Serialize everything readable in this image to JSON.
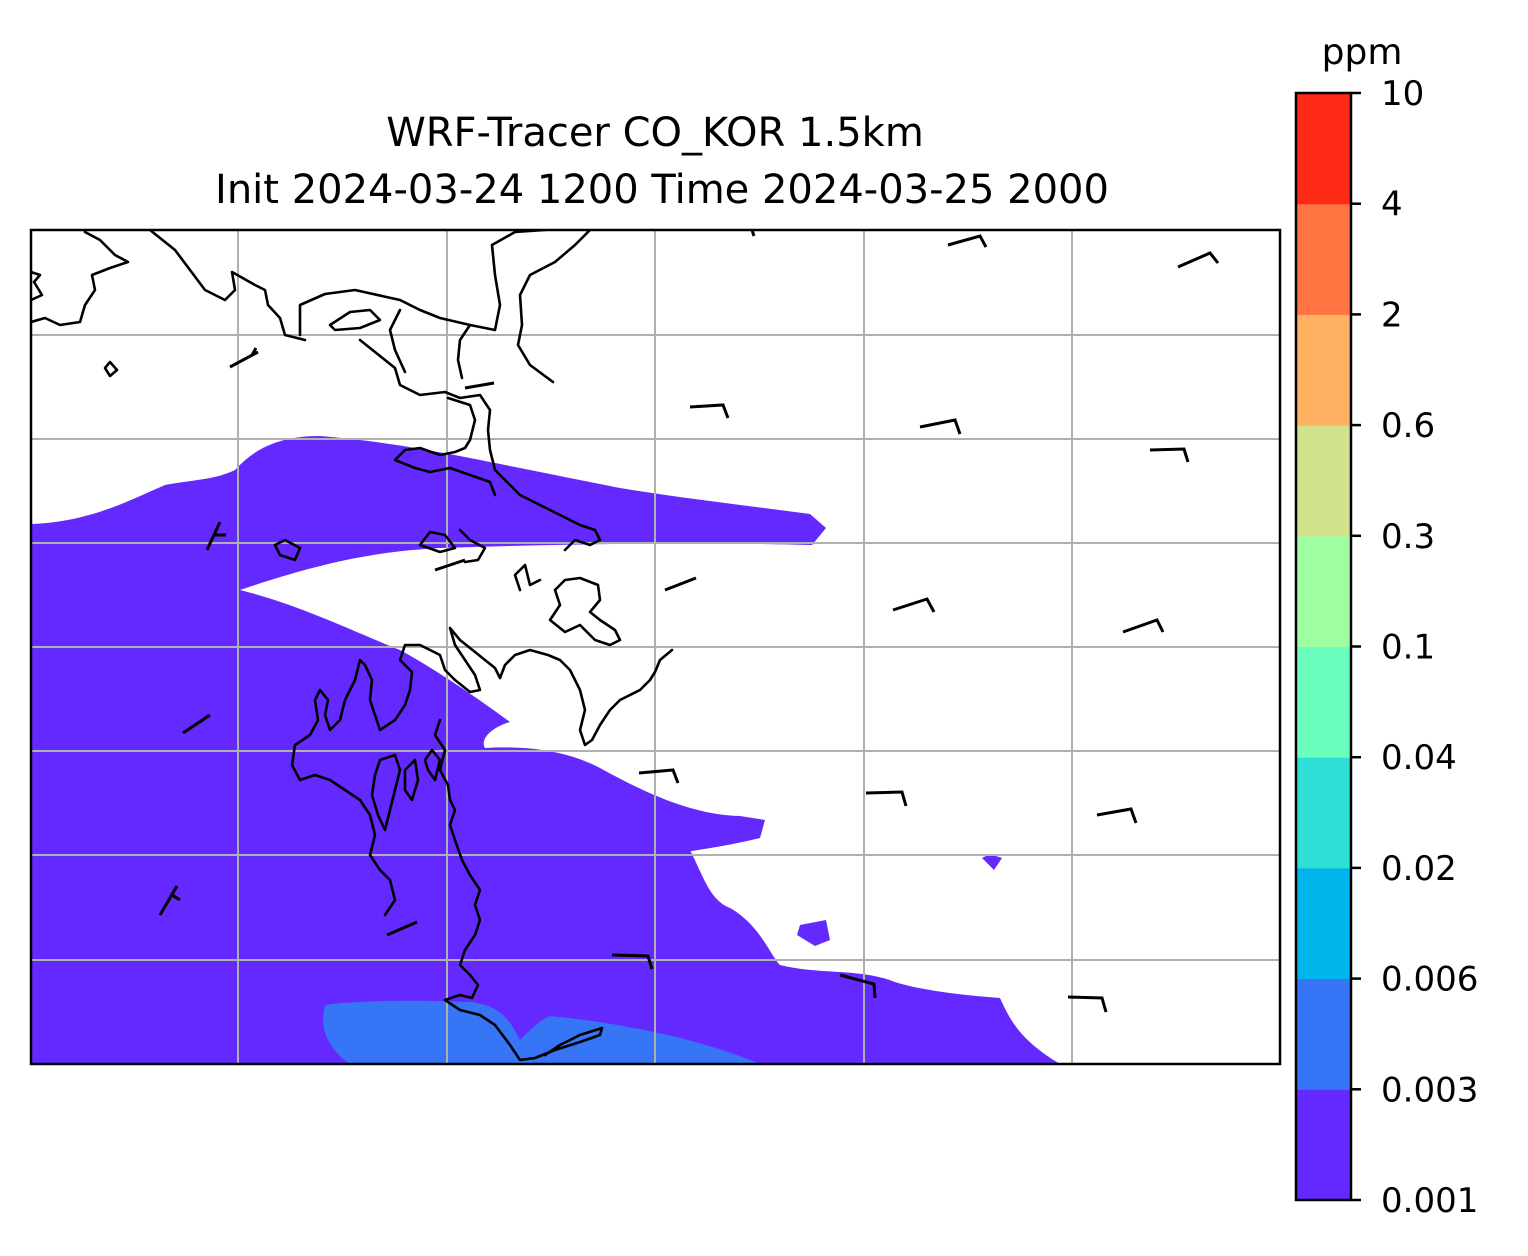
{
  "figure": {
    "title_line1": "WRF-Tracer CO_KOR 1.5km",
    "title_line2": "Init 2024-03-24 1200 Time 2024-03-25 2000"
  },
  "colorbar": {
    "label": "ppm",
    "ticks": [
      "0.001",
      "0.003",
      "0.006",
      "0.02",
      "0.04",
      "0.1",
      "0.3",
      "0.6",
      "2",
      "4",
      "10"
    ],
    "colors": [
      "#6429ff",
      "#3575f6",
      "#00b5ec",
      "#2fdfd6",
      "#6affbd",
      "#9dff9f",
      "#d0e38b",
      "#ffb060",
      "#ff7441",
      "#ff2a15"
    ]
  },
  "map": {
    "field": "CO tracer",
    "units": "ppm",
    "levels_present": [
      "0.001-0.003",
      "0.003-0.006"
    ],
    "gridlines": true,
    "coastlines": true,
    "wind_barbs": true
  }
}
